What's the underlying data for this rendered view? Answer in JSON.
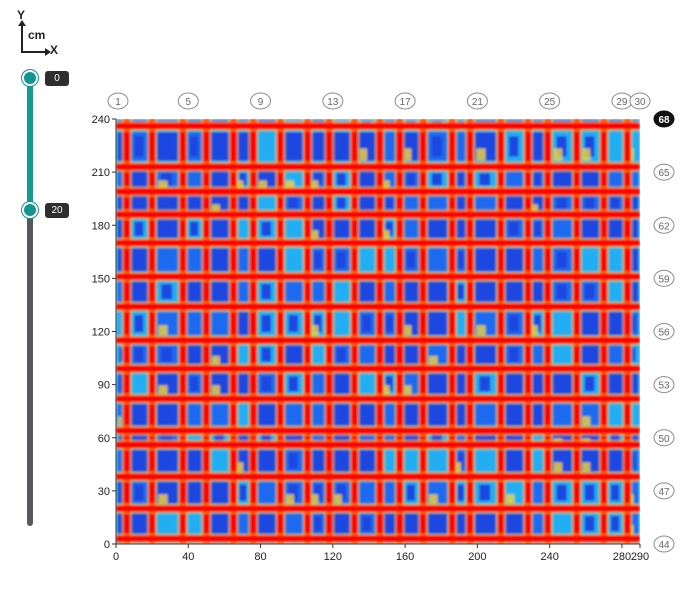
{
  "axis_icon": {
    "y": "Y",
    "unit": "cm",
    "x": "X"
  },
  "slider": {
    "min": 0,
    "max": 68,
    "low": 0,
    "high": 20,
    "low_label": "0",
    "high_label": "20"
  },
  "chart_data": {
    "type": "heatmap",
    "title": "",
    "xlabel": "",
    "ylabel": "",
    "xlim": [
      0,
      290
    ],
    "ylim": [
      0,
      240
    ],
    "x_ticks": [
      0,
      40,
      80,
      120,
      160,
      200,
      240,
      280,
      290
    ],
    "y_ticks": [
      0,
      30,
      60,
      90,
      120,
      150,
      180,
      210,
      240
    ],
    "top_markers": [
      {
        "label": "1",
        "x": 0
      },
      {
        "label": "5",
        "x": 40
      },
      {
        "label": "9",
        "x": 80
      },
      {
        "label": "13",
        "x": 120
      },
      {
        "label": "17",
        "x": 160
      },
      {
        "label": "21",
        "x": 200
      },
      {
        "label": "25",
        "x": 240
      },
      {
        "label": "29",
        "x": 280
      },
      {
        "label": "30",
        "x": 290
      }
    ],
    "right_markers": [
      {
        "label": "68",
        "y": 240,
        "selected": true
      },
      {
        "label": "65",
        "y": 210
      },
      {
        "label": "62",
        "y": 180
      },
      {
        "label": "59",
        "y": 150
      },
      {
        "label": "56",
        "y": 120
      },
      {
        "label": "53",
        "y": 90
      },
      {
        "label": "50",
        "y": 60
      },
      {
        "label": "47",
        "y": 30
      },
      {
        "label": "44",
        "y": 0
      }
    ],
    "grid_x_cm": [
      6,
      20,
      37,
      50,
      65,
      76,
      91,
      106,
      118,
      132,
      146,
      157,
      170,
      186,
      196,
      213,
      228,
      239,
      255,
      270,
      283
    ],
    "grid_y_cm": [
      3,
      20,
      38,
      56,
      64,
      82,
      99,
      115,
      134,
      151,
      170,
      186,
      199,
      213,
      236
    ],
    "colors": {
      "line": "#ff0000",
      "cell_dark": "#1f47e0",
      "cell_mid": "#1b6af0",
      "cell_light": "#22aef2",
      "cyan": "#27d3f0",
      "yellow": "#f5d633"
    }
  }
}
